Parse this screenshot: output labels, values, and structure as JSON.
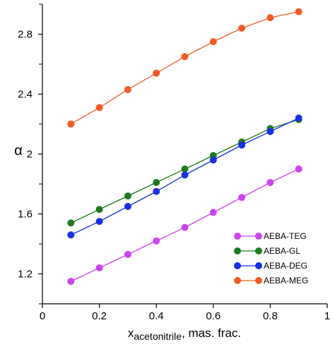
{
  "chart_data": {
    "type": "line",
    "ylabel": "α",
    "xlabel_sub": "acetonitrile",
    "xlabel_rest": ", mas. frac.",
    "xlabel_prefix": "x",
    "xlim": [
      0,
      1
    ],
    "ylim": [
      1.0,
      3.0
    ],
    "x_ticks": [
      0,
      0.2,
      0.4,
      0.6,
      0.8,
      1
    ],
    "x_tick_labels": [
      "0",
      "0.2",
      "0.4",
      "0.6",
      "0.8",
      "1"
    ],
    "y_ticks": [
      1.2,
      1.6,
      2.0,
      2.4,
      2.8
    ],
    "y_tick_labels": [
      "1.2",
      "1.6",
      "2",
      "2.4",
      "2.8"
    ],
    "y_minor_ticks": [
      1.0,
      1.4,
      1.8,
      2.2,
      2.6,
      3.0
    ],
    "grid": false,
    "legend_position": "bottom-right",
    "x": [
      0.1,
      0.2,
      0.3,
      0.4,
      0.5,
      0.6,
      0.7,
      0.8,
      0.9
    ],
    "series": [
      {
        "name": "AEBA-TEG",
        "color": "#cc44ee",
        "values": [
          1.15,
          1.24,
          1.33,
          1.42,
          1.51,
          1.61,
          1.71,
          1.81,
          1.9
        ]
      },
      {
        "name": "AEBA-GL",
        "color": "#1f7a1f",
        "values": [
          1.54,
          1.63,
          1.72,
          1.81,
          1.9,
          1.99,
          2.08,
          2.17,
          2.23
        ]
      },
      {
        "name": "AEBA-DEG",
        "color": "#1a2fe0",
        "values": [
          1.46,
          1.55,
          1.65,
          1.75,
          1.86,
          1.96,
          2.06,
          2.15,
          2.24
        ]
      },
      {
        "name": "AEBA-MEG",
        "color": "#f35a25",
        "values": [
          2.2,
          2.31,
          2.43,
          2.54,
          2.65,
          2.75,
          2.84,
          2.91,
          2.95
        ]
      }
    ]
  }
}
